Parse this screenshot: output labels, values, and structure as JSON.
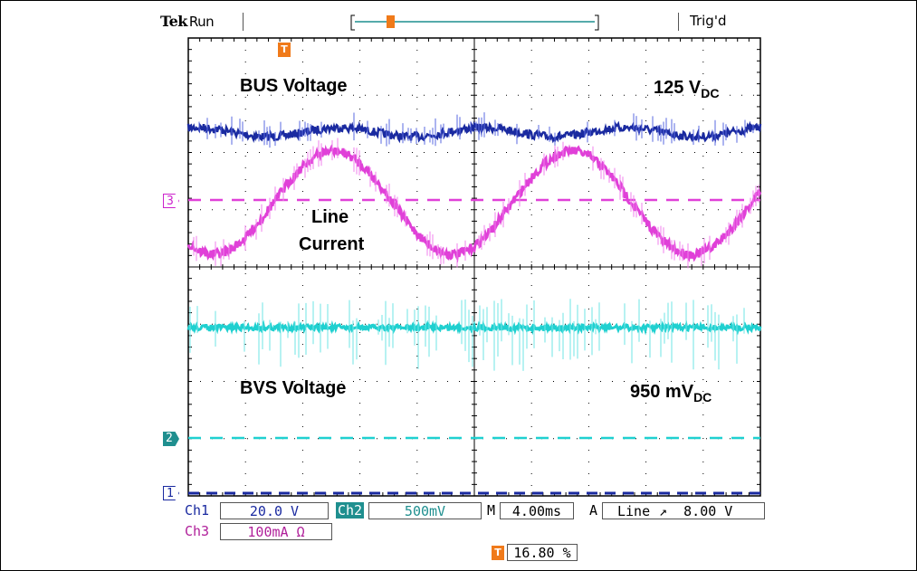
{
  "header": {
    "brand": "Tek",
    "status": "Run",
    "trigger_status": "Trig'd",
    "trigger_position_marker": "T"
  },
  "colors": {
    "ch1": "#1a2aa0",
    "ch2": "#1fd0d0",
    "ch3": "#e040d8",
    "trigger": "#f07a1a",
    "graticule": "#000000"
  },
  "labels": {
    "bus_voltage": "BUS Voltage",
    "bus_value": "125 V",
    "bus_sub": "DC",
    "line_current_1": "Line",
    "line_current_2": "Current",
    "bvs_voltage": "BVS Voltage",
    "bvs_value": "950 mV",
    "bvs_sub": "DC"
  },
  "markers": {
    "ch3": "3",
    "ch2": "2",
    "ch1": "1"
  },
  "readouts": {
    "ch1_label": "Ch1",
    "ch1_scale": "20.0 V",
    "ch2_label": "Ch2",
    "ch2_scale": "500mV",
    "timebase_label": "M",
    "timebase": "4.00ms",
    "trigger_mode": "A",
    "trigger_source": "Line",
    "trigger_slope": "↗",
    "trigger_level": "8.00 V",
    "ch3_label": "Ch3",
    "ch3_scale": "100mA Ω",
    "trigger_pos_icon": "T",
    "trigger_pos": "16.80 %"
  },
  "waveforms": {
    "bus_voltage": {
      "description_units": "divisions",
      "level_div": 0.0,
      "ripple_amp_div": 0.1,
      "cycles": 3
    },
    "line_current": {
      "amp_div": 1.1,
      "cycles": 1.95
    },
    "bvs_voltage": {
      "level_div": 0.0,
      "noise_spikes": true
    }
  }
}
